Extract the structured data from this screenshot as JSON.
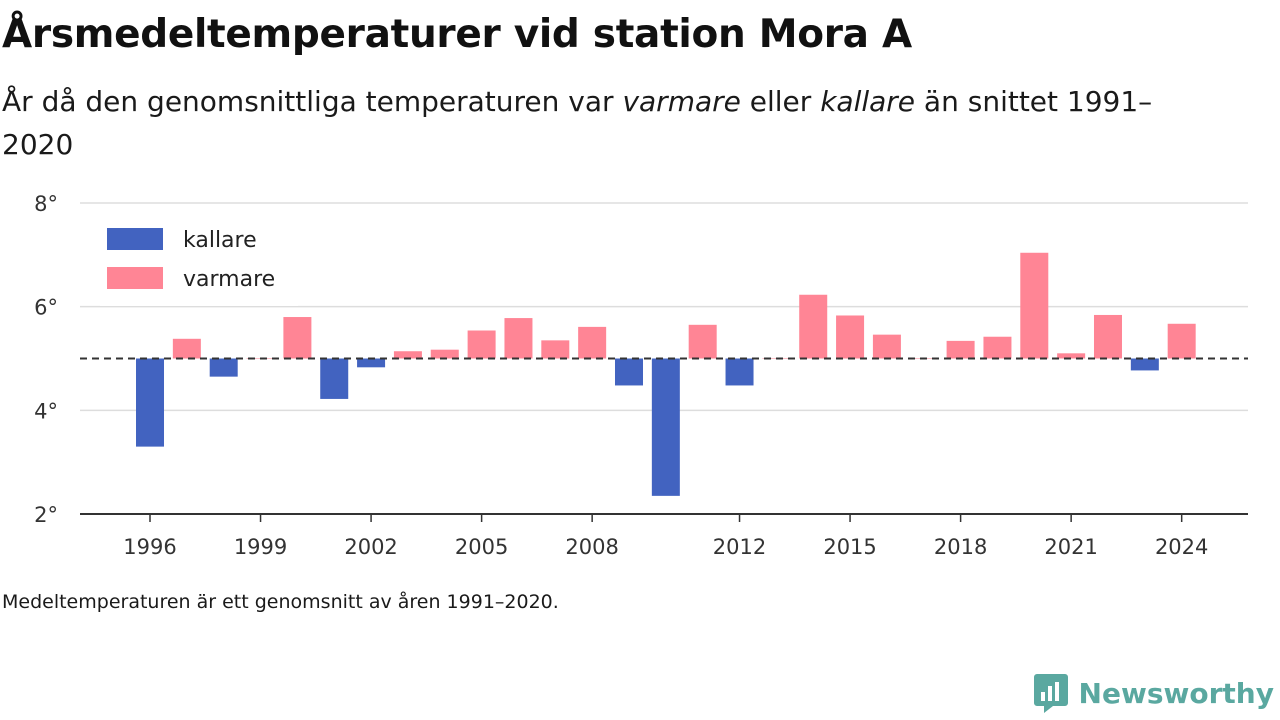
{
  "header": {
    "title": "Årsmedeltemperaturer vid station Mora A",
    "subtitle_part1": "År då den genomsnittliga temperaturen var ",
    "subtitle_warm": "varmare",
    "subtitle_part2": " eller ",
    "subtitle_cold": "kallare",
    "subtitle_part3": " än snittet 1991–2020"
  },
  "caption": "Medeltemperaturen är ett genomsnitt av åren 1991–2020.",
  "brand": {
    "name": "Newsworthy",
    "icon": "newsworthy-logo-icon",
    "color": "#5aa8a0"
  },
  "chart_data": {
    "type": "bar",
    "title": "Årsmedeltemperaturer vid station Mora A",
    "baseline": 5.0,
    "ylim": [
      2,
      8
    ],
    "y_ticks": [
      2,
      4,
      6,
      8
    ],
    "y_tick_labels": [
      "2°",
      "4°",
      "6°",
      "8°"
    ],
    "x_ticks": [
      1996,
      1999,
      2002,
      2005,
      2008,
      2012,
      2015,
      2018,
      2021,
      2024
    ],
    "xlim": [
      1994.1,
      2025.8
    ],
    "grid": true,
    "legend_position": "top-left",
    "colors": {
      "kallare": "#4263c0",
      "varmare": "#ff8595"
    },
    "series": [
      {
        "name": "kallare",
        "color": "#4263c0"
      },
      {
        "name": "varmare",
        "color": "#ff8595"
      }
    ],
    "years": [
      1996,
      1997,
      1998,
      1999,
      2000,
      2001,
      2002,
      2003,
      2004,
      2005,
      2006,
      2007,
      2008,
      2009,
      2010,
      2011,
      2012,
      2013,
      2014,
      2015,
      2016,
      2017,
      2018,
      2019,
      2020,
      2021,
      2022,
      2023,
      2024
    ],
    "values": [
      3.3,
      5.38,
      4.65,
      5.0,
      5.8,
      4.22,
      4.83,
      5.14,
      5.17,
      5.54,
      5.78,
      5.35,
      5.61,
      4.48,
      2.35,
      5.65,
      4.48,
      5.01,
      6.23,
      5.83,
      5.46,
      5.0,
      5.34,
      5.42,
      7.04,
      5.1,
      5.84,
      4.77,
      5.67
    ]
  }
}
